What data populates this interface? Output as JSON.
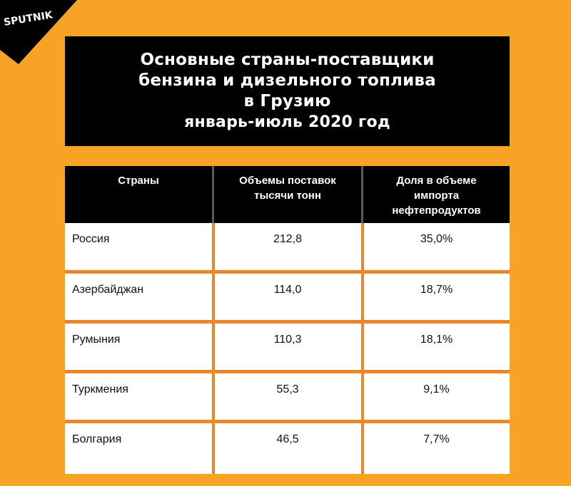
{
  "logo": {
    "text": "SPUTNIK",
    "bg_color": "#000000",
    "text_color": "#ffffff"
  },
  "title": {
    "line1": "Основные страны-поставщики",
    "line2": "бензина и дизельного топлива",
    "line3": "в Грузию",
    "line4": "январь-июль 2020 год"
  },
  "colors": {
    "background": "#f7a325",
    "header_bg": "#000000",
    "separator": "#e8882b"
  },
  "chart_data": {
    "type": "table",
    "columns": [
      {
        "lines": [
          "Страны"
        ]
      },
      {
        "lines": [
          "Объемы поставок",
          "тысячи тонн"
        ]
      },
      {
        "lines": [
          "Доля в объеме",
          "импорта",
          "нефтепродуктов"
        ]
      }
    ],
    "rows": [
      {
        "country": "Россия",
        "volume": "212,8",
        "share": "35,0%"
      },
      {
        "country": "Азербайджан",
        "volume": "114,0",
        "share": "18,7%"
      },
      {
        "country": "Румыния",
        "volume": "110,3",
        "share": "18,1%"
      },
      {
        "country": "Туркмения",
        "volume": "55,3",
        "share": "9,1%"
      },
      {
        "country": "Болгария",
        "volume": "46,5",
        "share": "7,7%"
      }
    ]
  }
}
